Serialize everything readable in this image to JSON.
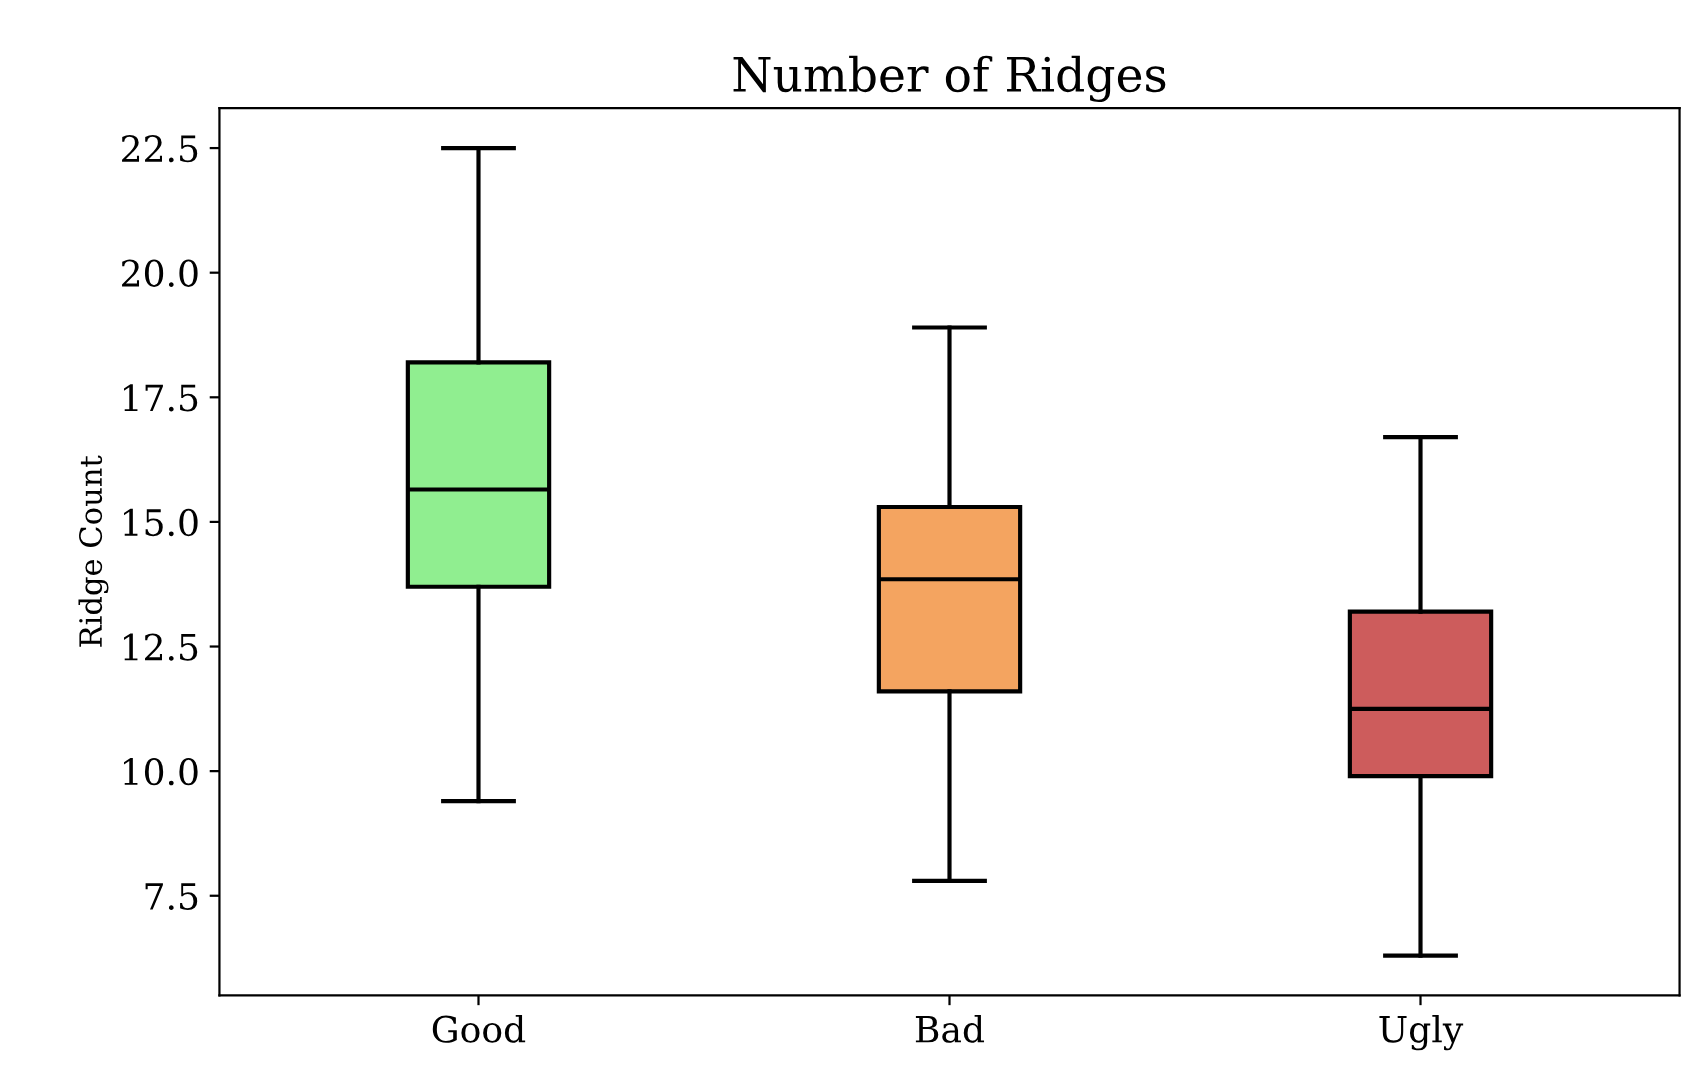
{
  "chart_data": {
    "type": "box",
    "title": "Number of Ridges",
    "ylabel": "Ridge Count",
    "categories": [
      "Good",
      "Bad",
      "Ugly"
    ],
    "colors": [
      "#90ee90",
      "#f4a460",
      "#cd5c5c"
    ],
    "boxes": [
      {
        "low": 9.4,
        "q1": 13.7,
        "median": 15.65,
        "q3": 18.2,
        "high": 22.5
      },
      {
        "low": 7.8,
        "q1": 11.6,
        "median": 13.85,
        "q3": 15.3,
        "high": 18.9
      },
      {
        "low": 6.3,
        "q1": 9.9,
        "median": 11.25,
        "q3": 13.2,
        "high": 16.7
      }
    ],
    "ylim": [
      5.5,
      23.3
    ],
    "yticks": [
      7.5,
      {
        "value": 10,
        "label": "10.0"
      },
      12.5,
      {
        "value": 15,
        "label": "15.0"
      },
      17.5,
      {
        "value": 20,
        "label": "20.0"
      },
      22.5
    ],
    "grid": false,
    "legend": false
  }
}
